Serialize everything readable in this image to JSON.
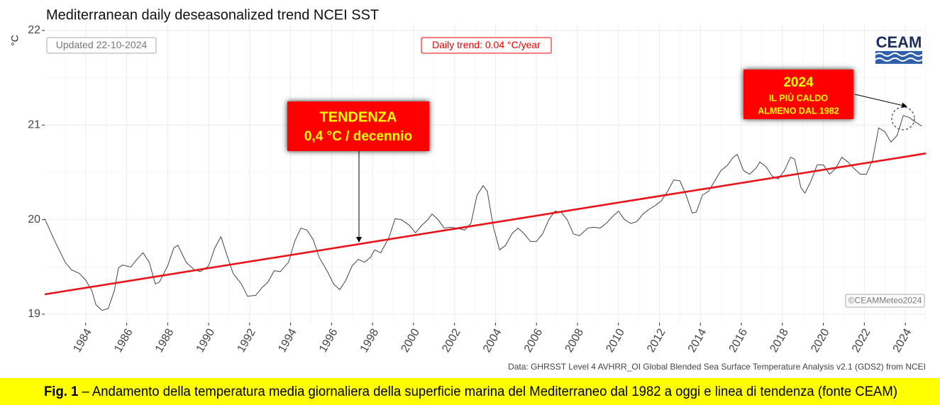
{
  "chart_data": {
    "type": "line",
    "title": "Mediterranean daily deseasonalized trend NCEI SST",
    "ylabel": "°C",
    "updated": "Updated 22-10-2024",
    "trend_label": "Daily trend: 0.04 °C/year",
    "tendenza": {
      "title": "TENDENZA",
      "subtitle": "0,4 °C / decennio"
    },
    "record": {
      "title": "2024",
      "line1": "IL PIÙ CALDO",
      "line2": "ALMENO DAL 1982"
    },
    "logo": "CEAM",
    "copyright": "©CEAMMeteo2024",
    "source": "Data: GHRSST Level 4 AVHRR_OI Global Blended Sea Surface Temperature Analysis v2.1 (GDS2) from NCEI",
    "caption": {
      "label": "Fig. 1",
      "text": " – Andamento della temperatura media giornaliera della superficie marina del Mediterraneo dal 1982 a oggi e linea di tendenza (fonte CEAM)"
    },
    "xlim": [
      1982,
      2025
    ],
    "xticks": [
      1984,
      1986,
      1988,
      1990,
      1992,
      1994,
      1996,
      1998,
      2000,
      2002,
      2004,
      2006,
      2008,
      2010,
      2012,
      2014,
      2016,
      2018,
      2020,
      2022,
      2024
    ],
    "xminorticks": [
      1983,
      1985,
      1987,
      1989,
      1991,
      1993,
      1995,
      1997,
      1999,
      2001,
      2003,
      2005,
      2007,
      2009,
      2011,
      2013,
      2015,
      2017,
      2019,
      2021,
      2023,
      2025
    ],
    "ylim": [
      18.91,
      22.06
    ],
    "yticks": [
      19,
      20,
      21,
      22
    ],
    "yminorticks": [
      19.5,
      20.5,
      21.5
    ],
    "grid": true,
    "series": [
      {
        "color": "#444444",
        "width": 1,
        "x": [
          1982,
          1982.5,
          1983,
          1983.3,
          1983.7,
          1984,
          1984.3,
          1984.5,
          1984.8,
          1985.1,
          1985.4,
          1985.6,
          1985.8,
          1986.2,
          1986.5,
          1986.8,
          1987.1,
          1987.4,
          1987.6,
          1988,
          1988.3,
          1988.5,
          1988.9,
          1989.3,
          1989.6,
          1990,
          1990.3,
          1990.6,
          1990.9,
          1991.2,
          1991.6,
          1991.9,
          1992.3,
          1992.6,
          1992.9,
          1993.2,
          1993.5,
          1993.9,
          1994.2,
          1994.5,
          1994.8,
          1995.1,
          1995.4,
          1995.8,
          1996.1,
          1996.4,
          1996.7,
          1997,
          1997.3,
          1997.6,
          1997.9,
          1998.1,
          1998.4,
          1998.8,
          1999.1,
          1999.4,
          1999.8,
          2000.1,
          2000.4,
          2000.7,
          2000.9,
          2001.2,
          2001.5,
          2001.8,
          2002.1,
          2002.5,
          2002.8,
          2003.1,
          2003.4,
          2003.6,
          2003.9,
          2004.2,
          2004.5,
          2004.8,
          2005.1,
          2005.4,
          2005.7,
          2006,
          2006.3,
          2006.6,
          2006.9,
          2007.2,
          2007.5,
          2007.8,
          2008.1,
          2008.5,
          2008.8,
          2009.1,
          2009.4,
          2009.7,
          2010,
          2010.3,
          2010.6,
          2010.9,
          2011.2,
          2011.5,
          2011.8,
          2012.1,
          2012.4,
          2012.7,
          2013,
          2013.3,
          2013.6,
          2013.8,
          2014.1,
          2014.4,
          2014.7,
          2015,
          2015.3,
          2015.6,
          2015.8,
          2016.1,
          2016.4,
          2016.7,
          2016.9,
          2017.2,
          2017.5,
          2017.8,
          2018.1,
          2018.4,
          2018.6,
          2018.9,
          2019.1,
          2019.4,
          2019.7,
          2020,
          2020.3,
          2020.6,
          2020.9,
          2021.2,
          2021.5,
          2021.8,
          2022.1,
          2022.4,
          2022.7,
          2023,
          2023.3,
          2023.6,
          2023.9,
          2024.2,
          2024.5,
          2024.8
        ],
        "values": [
          20.01,
          19.77,
          19.55,
          19.47,
          19.43,
          19.36,
          19.25,
          19.1,
          19.04,
          19.06,
          19.25,
          19.49,
          19.52,
          19.5,
          19.58,
          19.65,
          19.55,
          19.32,
          19.34,
          19.51,
          19.7,
          19.73,
          19.55,
          19.47,
          19.45,
          19.51,
          19.7,
          19.82,
          19.62,
          19.43,
          19.32,
          19.19,
          19.2,
          19.28,
          19.34,
          19.46,
          19.45,
          19.55,
          19.77,
          19.91,
          19.89,
          19.79,
          19.6,
          19.45,
          19.32,
          19.26,
          19.36,
          19.51,
          19.58,
          19.55,
          19.6,
          19.68,
          19.65,
          19.81,
          20.01,
          20.0,
          19.94,
          19.86,
          19.94,
          20.0,
          20.06,
          20.0,
          19.91,
          19.92,
          19.91,
          19.89,
          19.96,
          20.26,
          20.36,
          20.3,
          19.92,
          19.68,
          19.73,
          19.85,
          19.91,
          19.85,
          19.77,
          19.77,
          19.85,
          20.0,
          20.09,
          20.08,
          20.0,
          19.85,
          19.83,
          19.91,
          19.92,
          19.91,
          19.96,
          20.03,
          20.09,
          20.0,
          19.96,
          19.98,
          20.06,
          20.11,
          20.15,
          20.2,
          20.3,
          20.42,
          20.41,
          20.26,
          20.07,
          20.08,
          20.26,
          20.3,
          20.41,
          20.52,
          20.57,
          20.66,
          20.69,
          20.52,
          20.48,
          20.54,
          20.61,
          20.56,
          20.46,
          20.43,
          20.52,
          20.66,
          20.64,
          20.34,
          20.28,
          20.41,
          20.58,
          20.58,
          20.48,
          20.54,
          20.66,
          20.61,
          20.54,
          20.48,
          20.48,
          20.63,
          20.97,
          20.93,
          20.82,
          20.89,
          21.1,
          21.08,
          21.03,
          20.99
        ]
      },
      {
        "color": "#e8141a",
        "width": 2.6,
        "x": [
          1982,
          2025
        ],
        "values": [
          19.21,
          20.7
        ]
      }
    ]
  }
}
